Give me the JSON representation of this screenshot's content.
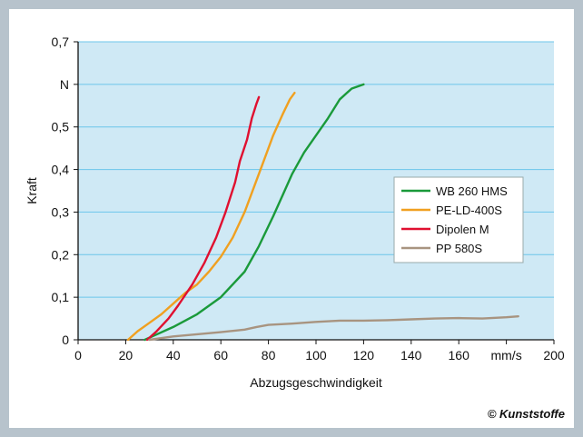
{
  "footer": {
    "copyright": "© Kunststoffe"
  },
  "chart_data": {
    "type": "line",
    "title": "",
    "xlabel": "Abzugsgeschwindigkeit",
    "ylabel": "Kraft",
    "xlim": [
      0,
      200
    ],
    "ylim": [
      0,
      0.7
    ],
    "x_ticks": [
      {
        "value": 0,
        "label": "0"
      },
      {
        "value": 20,
        "label": "20"
      },
      {
        "value": 40,
        "label": "40"
      },
      {
        "value": 60,
        "label": "60"
      },
      {
        "value": 80,
        "label": "80"
      },
      {
        "value": 100,
        "label": "100"
      },
      {
        "value": 120,
        "label": "120"
      },
      {
        "value": 140,
        "label": "140"
      },
      {
        "value": 160,
        "label": "160"
      },
      {
        "value": 180,
        "label": "mm/s"
      },
      {
        "value": 200,
        "label": "200"
      }
    ],
    "y_ticks": [
      {
        "value": 0,
        "label": "0"
      },
      {
        "value": 0.1,
        "label": "0,1"
      },
      {
        "value": 0.2,
        "label": "0,2"
      },
      {
        "value": 0.3,
        "label": "0,3"
      },
      {
        "value": 0.4,
        "label": "0,4"
      },
      {
        "value": 0.5,
        "label": "0,5"
      },
      {
        "value": 0.6,
        "label": "N"
      },
      {
        "value": 0.7,
        "label": "0,7"
      }
    ],
    "grid": "horizontal",
    "legend_position": "right",
    "plot_background": "#cfe9f5",
    "grid_color": "#6cc6ea",
    "series": [
      {
        "name": "WB 260 HMS",
        "color": "#1a9a3a",
        "points": [
          [
            28,
            0
          ],
          [
            32,
            0.01
          ],
          [
            40,
            0.03
          ],
          [
            50,
            0.06
          ],
          [
            60,
            0.1
          ],
          [
            70,
            0.16
          ],
          [
            76,
            0.22
          ],
          [
            82,
            0.29
          ],
          [
            86,
            0.34
          ],
          [
            90,
            0.39
          ],
          [
            95,
            0.44
          ],
          [
            100,
            0.48
          ],
          [
            105,
            0.52
          ],
          [
            110,
            0.565
          ],
          [
            115,
            0.59
          ],
          [
            120,
            0.6
          ]
        ]
      },
      {
        "name": "PE-LD-400S",
        "color": "#f0a020",
        "points": [
          [
            21,
            0
          ],
          [
            25,
            0.02
          ],
          [
            30,
            0.04
          ],
          [
            35,
            0.06
          ],
          [
            40,
            0.085
          ],
          [
            45,
            0.11
          ],
          [
            50,
            0.13
          ],
          [
            55,
            0.16
          ],
          [
            60,
            0.195
          ],
          [
            65,
            0.24
          ],
          [
            70,
            0.3
          ],
          [
            74,
            0.36
          ],
          [
            78,
            0.42
          ],
          [
            82,
            0.48
          ],
          [
            86,
            0.53
          ],
          [
            89,
            0.565
          ],
          [
            91,
            0.58
          ]
        ]
      },
      {
        "name": "Dipolen M",
        "color": "#e01030",
        "points": [
          [
            29,
            0
          ],
          [
            33,
            0.02
          ],
          [
            38,
            0.05
          ],
          [
            42,
            0.08
          ],
          [
            48,
            0.13
          ],
          [
            53,
            0.18
          ],
          [
            58,
            0.24
          ],
          [
            62,
            0.3
          ],
          [
            66,
            0.37
          ],
          [
            68,
            0.42
          ],
          [
            71,
            0.47
          ],
          [
            73,
            0.52
          ],
          [
            75,
            0.555
          ],
          [
            76,
            0.57
          ]
        ]
      },
      {
        "name": "PP 580S",
        "color": "#a89480",
        "points": [
          [
            30,
            0
          ],
          [
            40,
            0.008
          ],
          [
            50,
            0.013
          ],
          [
            60,
            0.018
          ],
          [
            70,
            0.024
          ],
          [
            75,
            0.03
          ],
          [
            80,
            0.035
          ],
          [
            90,
            0.038
          ],
          [
            100,
            0.042
          ],
          [
            110,
            0.045
          ],
          [
            120,
            0.045
          ],
          [
            130,
            0.046
          ],
          [
            140,
            0.048
          ],
          [
            150,
            0.05
          ],
          [
            160,
            0.051
          ],
          [
            170,
            0.05
          ],
          [
            180,
            0.053
          ],
          [
            185,
            0.055
          ]
        ]
      }
    ]
  }
}
